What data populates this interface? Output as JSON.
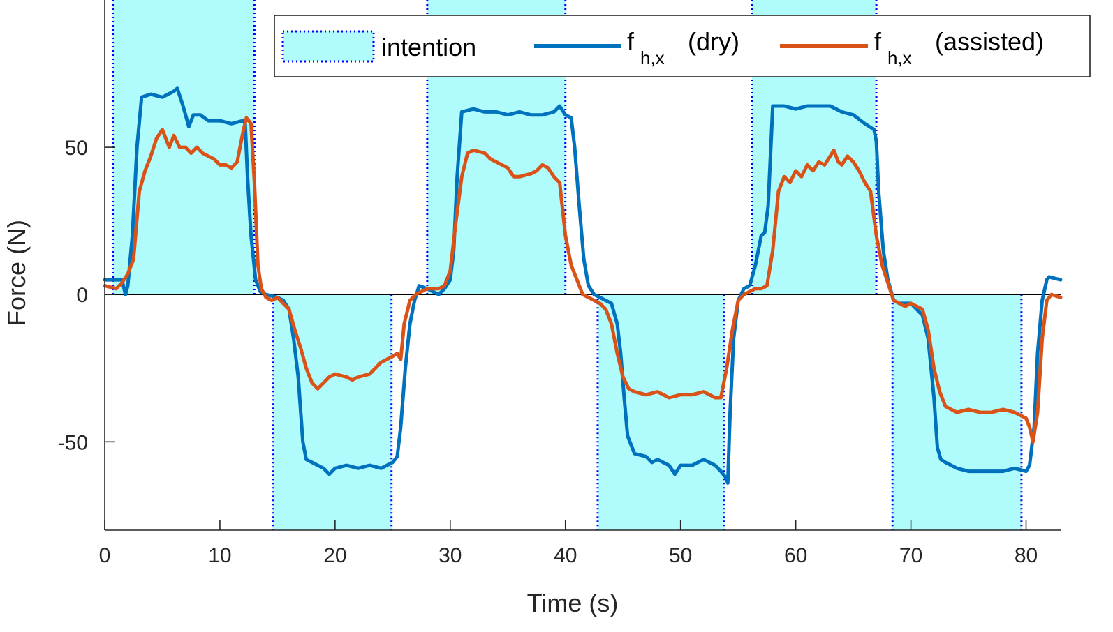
{
  "chart_data": {
    "type": "line",
    "title": "",
    "xlabel": "Time (s)",
    "ylabel": "Force (N)",
    "xlim": [
      0,
      83
    ],
    "ylim": [
      -80,
      100
    ],
    "xticks": [
      0,
      10,
      20,
      30,
      40,
      50,
      60,
      70,
      80
    ],
    "yticks": [
      -50,
      0,
      50
    ],
    "xtick_labels": [
      "0",
      "10",
      "20",
      "30",
      "40",
      "50",
      "60",
      "70",
      "80"
    ],
    "ytick_labels": [
      "-50",
      "0",
      "50"
    ],
    "grid": false,
    "legend_position": "top-right",
    "colors": {
      "dry": "#0072BD",
      "assisted": "#D95319",
      "intention_fill": "#B0FCFC",
      "intention_edge": "#0000FF",
      "axis": "#262626"
    },
    "intention": {
      "name": "intention",
      "regions": [
        {
          "start": 0.7,
          "end": 13.0,
          "value": 100
        },
        {
          "start": 14.6,
          "end": 24.9,
          "value": -80
        },
        {
          "start": 28.0,
          "end": 40.0,
          "value": 100
        },
        {
          "start": 42.8,
          "end": 53.8,
          "value": -80
        },
        {
          "start": 56.2,
          "end": 67.0,
          "value": 100
        },
        {
          "start": 68.4,
          "end": 79.6,
          "value": -80
        }
      ]
    },
    "series": [
      {
        "name": "dry",
        "legend_main": "f",
        "legend_sub": "h,x",
        "legend_suffix": "(dry)",
        "points": [
          [
            0,
            5
          ],
          [
            1,
            5
          ],
          [
            1.5,
            5
          ],
          [
            1.8,
            0
          ],
          [
            2,
            3
          ],
          [
            2.4,
            20
          ],
          [
            2.8,
            50
          ],
          [
            3.2,
            67
          ],
          [
            4,
            68
          ],
          [
            5,
            67
          ],
          [
            6,
            69
          ],
          [
            6.3,
            70
          ],
          [
            6.8,
            64
          ],
          [
            7.3,
            57
          ],
          [
            7.7,
            61
          ],
          [
            8.3,
            61
          ],
          [
            9,
            59
          ],
          [
            10,
            59
          ],
          [
            11,
            58
          ],
          [
            12,
            59
          ],
          [
            12.2,
            58
          ],
          [
            12.4,
            40
          ],
          [
            12.7,
            20
          ],
          [
            13.1,
            5
          ],
          [
            13.5,
            1
          ],
          [
            14,
            0
          ],
          [
            15,
            -1
          ],
          [
            15.5,
            -2
          ],
          [
            16,
            -5
          ],
          [
            16.4,
            -15
          ],
          [
            16.8,
            -28
          ],
          [
            17.2,
            -50
          ],
          [
            17.5,
            -56
          ],
          [
            18,
            -57
          ],
          [
            19,
            -59
          ],
          [
            19.5,
            -61
          ],
          [
            20,
            -59
          ],
          [
            21,
            -58
          ],
          [
            22,
            -59
          ],
          [
            23,
            -58
          ],
          [
            24,
            -59
          ],
          [
            25,
            -57
          ],
          [
            25.4,
            -55
          ],
          [
            25.7,
            -45
          ],
          [
            26.1,
            -25
          ],
          [
            26.5,
            -10
          ],
          [
            26.9,
            -2
          ],
          [
            27.3,
            3
          ],
          [
            28,
            2
          ],
          [
            28.5,
            1
          ],
          [
            29,
            0
          ],
          [
            29.5,
            2
          ],
          [
            30,
            5
          ],
          [
            30.3,
            15
          ],
          [
            30.6,
            40
          ],
          [
            31,
            62
          ],
          [
            32,
            63
          ],
          [
            33,
            62
          ],
          [
            34,
            62
          ],
          [
            35,
            61
          ],
          [
            36,
            62
          ],
          [
            37,
            61
          ],
          [
            38,
            61
          ],
          [
            39,
            62
          ],
          [
            39.5,
            64
          ],
          [
            40,
            61
          ],
          [
            40.5,
            60
          ],
          [
            40.8,
            50
          ],
          [
            41.2,
            30
          ],
          [
            41.6,
            12
          ],
          [
            42,
            3
          ],
          [
            42.5,
            0
          ],
          [
            43,
            -1
          ],
          [
            44,
            -3
          ],
          [
            44.5,
            -10
          ],
          [
            44.8,
            -20
          ],
          [
            45.1,
            -35
          ],
          [
            45.4,
            -48
          ],
          [
            46,
            -54
          ],
          [
            47,
            -55
          ],
          [
            47.5,
            -57
          ],
          [
            48,
            -56
          ],
          [
            49,
            -58
          ],
          [
            49.5,
            -61
          ],
          [
            50,
            -58
          ],
          [
            51,
            -58
          ],
          [
            52,
            -56
          ],
          [
            53,
            -58
          ],
          [
            53.5,
            -60
          ],
          [
            53.9,
            -62
          ],
          [
            54.1,
            -64
          ],
          [
            54.3,
            -40
          ],
          [
            54.6,
            -15
          ],
          [
            55,
            -2
          ],
          [
            55.5,
            2
          ],
          [
            56,
            3
          ],
          [
            56.5,
            10
          ],
          [
            57,
            20
          ],
          [
            57.3,
            21
          ],
          [
            57.6,
            30
          ],
          [
            58,
            64
          ],
          [
            59,
            64
          ],
          [
            60,
            63
          ],
          [
            61,
            64
          ],
          [
            62,
            64
          ],
          [
            63,
            64
          ],
          [
            64,
            62
          ],
          [
            65,
            61
          ],
          [
            66,
            58
          ],
          [
            66.8,
            56
          ],
          [
            67,
            52
          ],
          [
            67.2,
            35
          ],
          [
            67.6,
            15
          ],
          [
            68,
            5
          ],
          [
            68.5,
            -2
          ],
          [
            69,
            -3
          ],
          [
            70,
            -3
          ],
          [
            71,
            -7
          ],
          [
            71.5,
            -15
          ],
          [
            72,
            -35
          ],
          [
            72.3,
            -52
          ],
          [
            72.6,
            -56
          ],
          [
            73,
            -57
          ],
          [
            74,
            -59
          ],
          [
            75,
            -60
          ],
          [
            76,
            -60
          ],
          [
            77,
            -60
          ],
          [
            78,
            -60
          ],
          [
            79,
            -59
          ],
          [
            80,
            -60
          ],
          [
            80.3,
            -58
          ],
          [
            80.7,
            -45
          ],
          [
            81,
            -20
          ],
          [
            81.4,
            -2
          ],
          [
            81.8,
            5
          ],
          [
            82,
            6
          ],
          [
            83,
            5
          ]
        ]
      },
      {
        "name": "assisted",
        "legend_main": "f",
        "legend_sub": "h,x",
        "legend_suffix": "(assisted)",
        "points": [
          [
            0,
            3
          ],
          [
            1,
            2
          ],
          [
            1.5,
            4
          ],
          [
            2,
            7
          ],
          [
            2.5,
            12
          ],
          [
            3,
            35
          ],
          [
            3.5,
            42
          ],
          [
            4,
            47
          ],
          [
            4.5,
            53
          ],
          [
            5,
            56
          ],
          [
            5.3,
            53
          ],
          [
            5.6,
            50
          ],
          [
            6,
            54
          ],
          [
            6.5,
            50
          ],
          [
            7,
            50
          ],
          [
            7.5,
            48
          ],
          [
            8,
            50
          ],
          [
            8.5,
            48
          ],
          [
            9,
            47
          ],
          [
            9.5,
            46
          ],
          [
            10,
            44
          ],
          [
            10.5,
            44
          ],
          [
            11,
            43
          ],
          [
            11.5,
            45
          ],
          [
            12,
            55
          ],
          [
            12.3,
            60
          ],
          [
            12.7,
            58
          ],
          [
            13,
            38
          ],
          [
            13.3,
            10
          ],
          [
            13.6,
            2
          ],
          [
            14,
            -1
          ],
          [
            14.5,
            -2
          ],
          [
            15,
            -1
          ],
          [
            15.5,
            -3
          ],
          [
            16,
            -5
          ],
          [
            16.5,
            -12
          ],
          [
            17,
            -18
          ],
          [
            17.5,
            -25
          ],
          [
            18,
            -30
          ],
          [
            18.5,
            -32
          ],
          [
            19,
            -30
          ],
          [
            19.5,
            -28
          ],
          [
            20,
            -27
          ],
          [
            21,
            -28
          ],
          [
            21.5,
            -29
          ],
          [
            22,
            -28
          ],
          [
            23,
            -27
          ],
          [
            24,
            -23
          ],
          [
            24.5,
            -22
          ],
          [
            25,
            -21
          ],
          [
            25.4,
            -20
          ],
          [
            25.7,
            -22
          ],
          [
            26,
            -10
          ],
          [
            26.5,
            -2
          ],
          [
            27,
            0
          ],
          [
            27.5,
            1
          ],
          [
            28,
            2
          ],
          [
            28.5,
            2
          ],
          [
            29,
            2
          ],
          [
            29.5,
            3
          ],
          [
            30,
            8
          ],
          [
            30.5,
            25
          ],
          [
            31,
            40
          ],
          [
            31.5,
            48
          ],
          [
            32,
            49
          ],
          [
            33,
            48
          ],
          [
            33.5,
            46
          ],
          [
            34,
            45
          ],
          [
            35,
            43
          ],
          [
            35.5,
            40
          ],
          [
            36,
            40
          ],
          [
            37,
            41
          ],
          [
            37.5,
            42
          ],
          [
            38,
            44
          ],
          [
            38.5,
            43
          ],
          [
            39,
            40
          ],
          [
            39.5,
            38
          ],
          [
            40,
            20
          ],
          [
            40.5,
            10
          ],
          [
            41,
            5
          ],
          [
            41.5,
            0
          ],
          [
            42,
            -1
          ],
          [
            42.5,
            -2
          ],
          [
            43,
            -3
          ],
          [
            43.5,
            -5
          ],
          [
            44,
            -10
          ],
          [
            44.5,
            -20
          ],
          [
            45,
            -28
          ],
          [
            45.5,
            -32
          ],
          [
            46,
            -33
          ],
          [
            47,
            -34
          ],
          [
            48,
            -33
          ],
          [
            49,
            -35
          ],
          [
            50,
            -34
          ],
          [
            51,
            -34
          ],
          [
            52,
            -33
          ],
          [
            53,
            -35
          ],
          [
            53.5,
            -35
          ],
          [
            54,
            -25
          ],
          [
            54.5,
            -12
          ],
          [
            55,
            -2
          ],
          [
            55.5,
            0
          ],
          [
            56,
            1
          ],
          [
            56.5,
            2
          ],
          [
            57,
            2
          ],
          [
            57.5,
            3
          ],
          [
            58,
            15
          ],
          [
            58.5,
            35
          ],
          [
            59,
            40
          ],
          [
            59.5,
            38
          ],
          [
            60,
            42
          ],
          [
            60.5,
            40
          ],
          [
            61,
            44
          ],
          [
            61.5,
            42
          ],
          [
            62,
            45
          ],
          [
            62.5,
            44
          ],
          [
            63,
            47
          ],
          [
            63.3,
            49
          ],
          [
            63.7,
            45
          ],
          [
            64,
            44
          ],
          [
            64.5,
            47
          ],
          [
            65,
            45
          ],
          [
            65.5,
            42
          ],
          [
            66,
            38
          ],
          [
            66.5,
            35
          ],
          [
            67,
            20
          ],
          [
            67.5,
            10
          ],
          [
            68,
            4
          ],
          [
            68.5,
            -2
          ],
          [
            69,
            -3
          ],
          [
            69.5,
            -4
          ],
          [
            70,
            -3
          ],
          [
            71,
            -5
          ],
          [
            71.5,
            -12
          ],
          [
            72,
            -25
          ],
          [
            72.5,
            -33
          ],
          [
            73,
            -38
          ],
          [
            74,
            -40
          ],
          [
            75,
            -39
          ],
          [
            76,
            -40
          ],
          [
            77,
            -40
          ],
          [
            78,
            -39
          ],
          [
            79,
            -40
          ],
          [
            79.5,
            -41
          ],
          [
            80,
            -42
          ],
          [
            80.3,
            -45
          ],
          [
            80.6,
            -50
          ],
          [
            81,
            -40
          ],
          [
            81.4,
            -15
          ],
          [
            81.8,
            -2
          ],
          [
            82.2,
            0
          ],
          [
            83,
            -1
          ]
        ]
      }
    ]
  }
}
